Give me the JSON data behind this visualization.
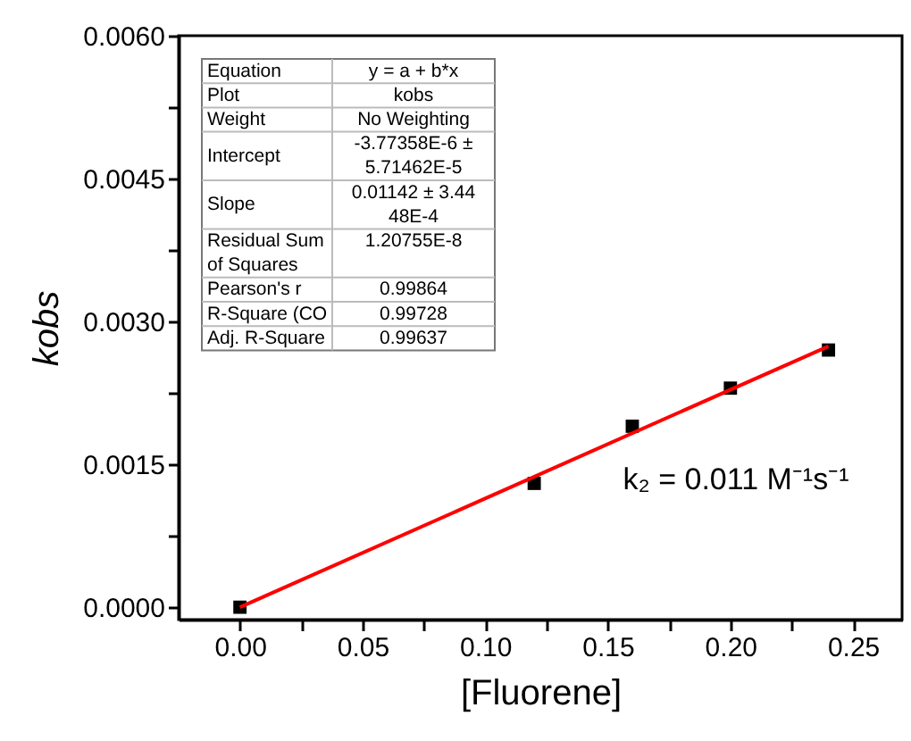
{
  "chart_data": {
    "type": "scatter",
    "xlabel": "[Fluorene]",
    "ylabel": "kobs",
    "xlim": [
      -0.025,
      0.27
    ],
    "ylim": [
      -0.00013,
      0.006
    ],
    "xticks": [
      {
        "value": 0,
        "label": "0.00"
      },
      {
        "value": 0.025,
        "label": null
      },
      {
        "value": 0.05,
        "label": "0.05"
      },
      {
        "value": 0.075,
        "label": null
      },
      {
        "value": 0.1,
        "label": "0.10"
      },
      {
        "value": 0.125,
        "label": null
      },
      {
        "value": 0.15,
        "label": "0.15"
      },
      {
        "value": 0.175,
        "label": null
      },
      {
        "value": 0.2,
        "label": "0.20"
      },
      {
        "value": 0.225,
        "label": null
      },
      {
        "value": 0.25,
        "label": "0.25"
      }
    ],
    "yticks": [
      {
        "value": 0,
        "label": "0.0000"
      },
      {
        "value": 0.00075,
        "label": null
      },
      {
        "value": 0.0015,
        "label": "0.0015"
      },
      {
        "value": 0.00225,
        "label": null
      },
      {
        "value": 0.003,
        "label": "0.0030"
      },
      {
        "value": 0.00375,
        "label": null
      },
      {
        "value": 0.0045,
        "label": "0.0045"
      },
      {
        "value": 0.00525,
        "label": null
      },
      {
        "value": 0.006,
        "label": "0.0060"
      }
    ],
    "grid": false,
    "series": [
      {
        "marker": "square",
        "color": "#000000",
        "x": [
          0,
          0.12,
          0.16,
          0.2,
          0.24
        ],
        "values": [
          0,
          0.0013,
          0.0019,
          0.0023,
          0.0027
        ]
      },
      {
        "type": "line",
        "line_style": "solid",
        "color": "#ff0000",
        "x": [
          0,
          0.24
        ],
        "values": [
          0,
          0.00274
        ]
      }
    ],
    "annotations": [
      "Equation",
      "y = a + b*x",
      "Plot",
      "kobs",
      "Weight",
      "No Weighting",
      "Intercept",
      "-3.77358E-6 ± 5.71462E-5",
      "Slope",
      "0.01142 ± 3.4448E-4",
      "Residual Sum of Squares",
      "1.20755E-8",
      "Pearson's r",
      "0.99864",
      "R-Square (CO",
      "0.99728",
      "Adj. R-Square",
      "0.99637",
      "k₂ = 0.011 M⁻¹s⁻¹"
    ]
  }
}
